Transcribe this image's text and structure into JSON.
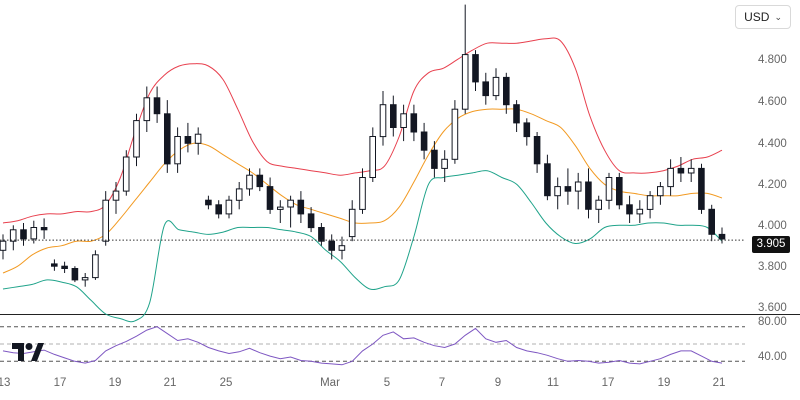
{
  "currency": {
    "label": "USD"
  },
  "price_axis": {
    "ticks": [
      "4.800",
      "4.600",
      "4.400",
      "4.200",
      "4.000",
      "3.800",
      "3.600"
    ]
  },
  "last_price": "3.905",
  "rsi_axis": {
    "ticks": [
      "80.00",
      "40.00"
    ]
  },
  "time_axis": {
    "ticks": [
      "13",
      "17",
      "19",
      "21",
      "25",
      "Mar",
      "5",
      "7",
      "9",
      "11",
      "13",
      "17",
      "19",
      "21"
    ]
  },
  "colors": {
    "candle": "#131722",
    "upper_band": "#e8404e",
    "middle_band": "#f29a22",
    "lower_band": "#1fa38a",
    "rsi_line": "#7e57c2",
    "price_line": "#333333"
  },
  "icons": {
    "tradingview_logo": "tradingview-logo",
    "dropdown": "chevron-down-icon"
  },
  "chart_data": {
    "type": "candlestick",
    "y_range": [
      3.58,
      4.96
    ],
    "bands": {
      "upper": [
        3.98,
        3.99,
        4.01,
        4.02,
        4.02,
        4.03,
        4.03,
        4.06,
        4.18,
        4.38,
        4.55,
        4.63,
        4.67,
        4.68,
        4.67,
        4.61,
        4.48,
        4.34,
        4.25,
        4.23,
        4.22,
        4.21,
        4.2,
        4.19,
        4.2,
        4.21,
        4.23,
        4.36,
        4.56,
        4.64,
        4.66,
        4.7,
        4.74,
        4.77,
        4.77,
        4.77,
        4.78,
        4.79,
        4.78,
        4.66,
        4.45,
        4.3,
        4.21,
        4.2,
        4.2,
        4.21,
        4.23,
        4.26,
        4.27,
        4.3
      ],
      "middle": [
        3.76,
        3.79,
        3.84,
        3.87,
        3.88,
        3.9,
        3.9,
        3.93,
        4.0,
        4.08,
        4.16,
        4.24,
        4.3,
        4.33,
        4.32,
        4.28,
        4.24,
        4.2,
        4.15,
        4.1,
        4.06,
        4.04,
        4.02,
        4.0,
        3.98,
        3.98,
        3.99,
        4.05,
        4.16,
        4.28,
        4.38,
        4.44,
        4.47,
        4.48,
        4.48,
        4.48,
        4.46,
        4.43,
        4.4,
        4.32,
        4.22,
        4.15,
        4.12,
        4.11,
        4.1,
        4.1,
        4.1,
        4.11,
        4.11,
        4.09
      ],
      "lower": [
        3.69,
        3.7,
        3.71,
        3.73,
        3.72,
        3.7,
        3.64,
        3.58,
        3.56,
        3.55,
        3.63,
        3.97,
        3.95,
        3.94,
        3.93,
        3.94,
        3.96,
        3.96,
        3.96,
        3.95,
        3.94,
        3.92,
        3.86,
        3.81,
        3.74,
        3.69,
        3.7,
        3.73,
        3.92,
        4.15,
        4.18,
        4.19,
        4.2,
        4.21,
        4.18,
        4.15,
        4.07,
        3.98,
        3.92,
        3.89,
        3.91,
        3.96,
        3.97,
        3.97,
        3.98,
        3.98,
        3.97,
        3.97,
        3.96,
        3.9
      ]
    },
    "candles": [
      [
        3.86,
        3.93,
        3.82,
        3.9
      ],
      [
        3.9,
        3.97,
        3.86,
        3.95
      ],
      [
        3.95,
        3.98,
        3.88,
        3.91
      ],
      [
        3.91,
        3.99,
        3.89,
        3.96
      ],
      [
        3.96,
        4.0,
        3.91,
        3.95
      ],
      [
        3.8,
        3.82,
        3.77,
        3.79
      ],
      [
        3.79,
        3.81,
        3.76,
        3.78
      ],
      [
        3.78,
        3.79,
        3.72,
        3.73
      ],
      [
        3.73,
        3.76,
        3.7,
        3.74
      ],
      [
        3.74,
        3.86,
        3.73,
        3.84
      ],
      [
        3.9,
        4.12,
        3.88,
        4.08
      ],
      [
        4.08,
        4.16,
        4.02,
        4.12
      ],
      [
        4.12,
        4.3,
        4.1,
        4.27
      ],
      [
        4.27,
        4.46,
        4.23,
        4.43
      ],
      [
        4.43,
        4.58,
        4.38,
        4.53
      ],
      [
        4.53,
        4.58,
        4.42,
        4.46
      ],
      [
        4.46,
        4.52,
        4.2,
        4.24
      ],
      [
        4.24,
        4.4,
        4.2,
        4.36
      ],
      [
        4.36,
        4.42,
        4.29,
        4.33
      ],
      [
        4.33,
        4.4,
        4.28,
        4.37
      ],
      [
        4.08,
        4.1,
        4.04,
        4.06
      ],
      [
        4.06,
        4.08,
        4.0,
        4.02
      ],
      [
        4.02,
        4.1,
        4.0,
        4.08
      ],
      [
        4.08,
        4.16,
        4.04,
        4.13
      ],
      [
        4.13,
        4.22,
        4.1,
        4.19
      ],
      [
        4.19,
        4.22,
        4.12,
        4.14
      ],
      [
        4.14,
        4.18,
        4.02,
        4.04
      ],
      [
        4.04,
        4.08,
        3.98,
        4.05
      ],
      [
        4.05,
        4.1,
        3.96,
        4.08
      ],
      [
        4.08,
        4.12,
        3.98,
        4.02
      ],
      [
        4.02,
        4.05,
        3.94,
        3.96
      ],
      [
        3.96,
        3.98,
        3.88,
        3.9
      ],
      [
        3.9,
        3.93,
        3.82,
        3.86
      ],
      [
        3.86,
        3.92,
        3.82,
        3.88
      ],
      [
        3.92,
        4.08,
        3.9,
        4.04
      ],
      [
        4.04,
        4.22,
        4.02,
        4.18
      ],
      [
        4.18,
        4.4,
        4.16,
        4.36
      ],
      [
        4.36,
        4.56,
        4.32,
        4.5
      ],
      [
        4.5,
        4.54,
        4.36,
        4.4
      ],
      [
        4.4,
        4.5,
        4.34,
        4.46
      ],
      [
        4.46,
        4.5,
        4.34,
        4.38
      ],
      [
        4.38,
        4.42,
        4.26,
        4.3
      ],
      [
        4.3,
        4.34,
        4.18,
        4.22
      ],
      [
        4.22,
        4.3,
        4.16,
        4.26
      ],
      [
        4.26,
        4.52,
        4.24,
        4.48
      ],
      [
        4.48,
        4.94,
        4.46,
        4.72
      ],
      [
        4.72,
        4.74,
        4.56,
        4.6
      ],
      [
        4.6,
        4.64,
        4.5,
        4.54
      ],
      [
        4.54,
        4.66,
        4.52,
        4.62
      ],
      [
        4.62,
        4.64,
        4.46,
        4.5
      ],
      [
        4.5,
        4.52,
        4.38,
        4.42
      ],
      [
        4.42,
        4.44,
        4.32,
        4.36
      ],
      [
        4.36,
        4.38,
        4.2,
        4.24
      ],
      [
        4.24,
        4.28,
        4.08,
        4.1
      ],
      [
        4.1,
        4.18,
        4.04,
        4.14
      ],
      [
        4.14,
        4.22,
        4.06,
        4.12
      ],
      [
        4.12,
        4.2,
        4.04,
        4.16
      ],
      [
        4.16,
        4.22,
        4.0,
        4.04
      ],
      [
        4.04,
        4.1,
        3.98,
        4.08
      ],
      [
        4.08,
        4.2,
        4.04,
        4.18
      ],
      [
        4.18,
        4.2,
        4.04,
        4.06
      ],
      [
        4.06,
        4.1,
        3.98,
        4.02
      ],
      [
        4.02,
        4.08,
        3.98,
        4.04
      ],
      [
        4.04,
        4.12,
        4.0,
        4.1
      ],
      [
        4.1,
        4.16,
        4.06,
        4.14
      ],
      [
        4.14,
        4.26,
        4.1,
        4.22
      ],
      [
        4.22,
        4.27,
        4.16,
        4.2
      ],
      [
        4.2,
        4.26,
        4.16,
        4.22
      ],
      [
        4.22,
        4.24,
        4.02,
        4.04
      ],
      [
        4.04,
        4.06,
        3.9,
        3.93
      ],
      [
        3.93,
        3.96,
        3.89,
        3.91
      ]
    ],
    "last_price": 3.905,
    "rsi": {
      "y_range": [
        30,
        90
      ],
      "levels": [
        80,
        60,
        40
      ],
      "values": [
        52,
        50,
        49,
        51,
        53,
        48,
        44,
        40,
        38,
        41,
        52,
        58,
        63,
        69,
        76,
        80,
        72,
        64,
        66,
        62,
        56,
        52,
        49,
        51,
        55,
        50,
        46,
        43,
        45,
        41,
        40,
        38,
        37,
        36,
        40,
        52,
        60,
        70,
        74,
        66,
        67,
        62,
        58,
        56,
        60,
        70,
        78,
        66,
        62,
        64,
        56,
        52,
        50,
        47,
        43,
        40,
        41,
        40,
        38,
        39,
        41,
        38,
        37,
        40,
        43,
        48,
        52,
        52,
        46,
        40,
        38
      ]
    }
  }
}
